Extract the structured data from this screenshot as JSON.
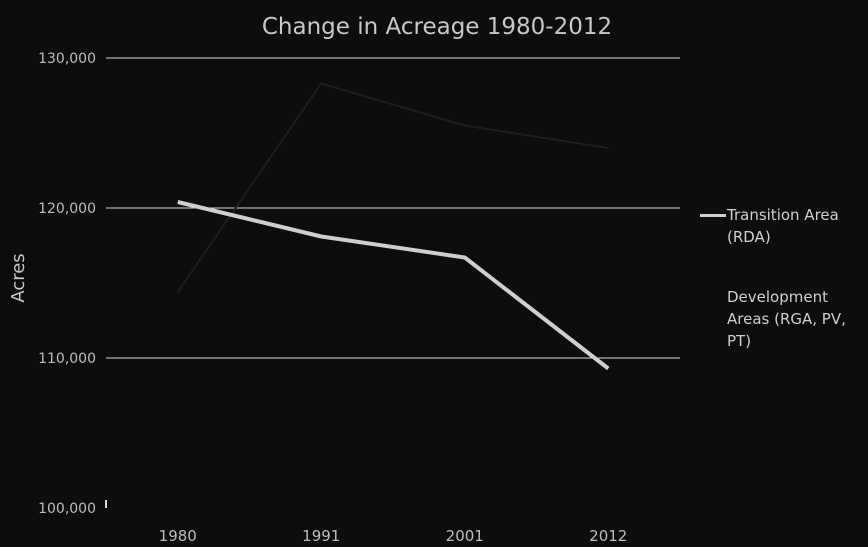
{
  "chart_data": {
    "type": "line",
    "title": "Change in Acreage 1980-2012",
    "xlabel": "",
    "ylabel": "Acres",
    "categories": [
      "1980",
      "1991",
      "2001",
      "2012"
    ],
    "ylim": [
      100000,
      130000
    ],
    "yticks": [
      100000,
      110000,
      120000,
      130000
    ],
    "ytick_labels": [
      "100,000",
      "110,000",
      "120,000",
      "130,000"
    ],
    "grid": "horizontal",
    "legend_position": "right",
    "series": [
      {
        "name": "Transition Area (RDA)",
        "values": [
          120400,
          118100,
          116700,
          109300
        ],
        "color": "#cfcfcf"
      },
      {
        "name": "Development Areas (RGA, PV, PT)",
        "values": [
          114400,
          128300,
          125500,
          124000
        ],
        "color": "#1e1e1e"
      }
    ]
  }
}
